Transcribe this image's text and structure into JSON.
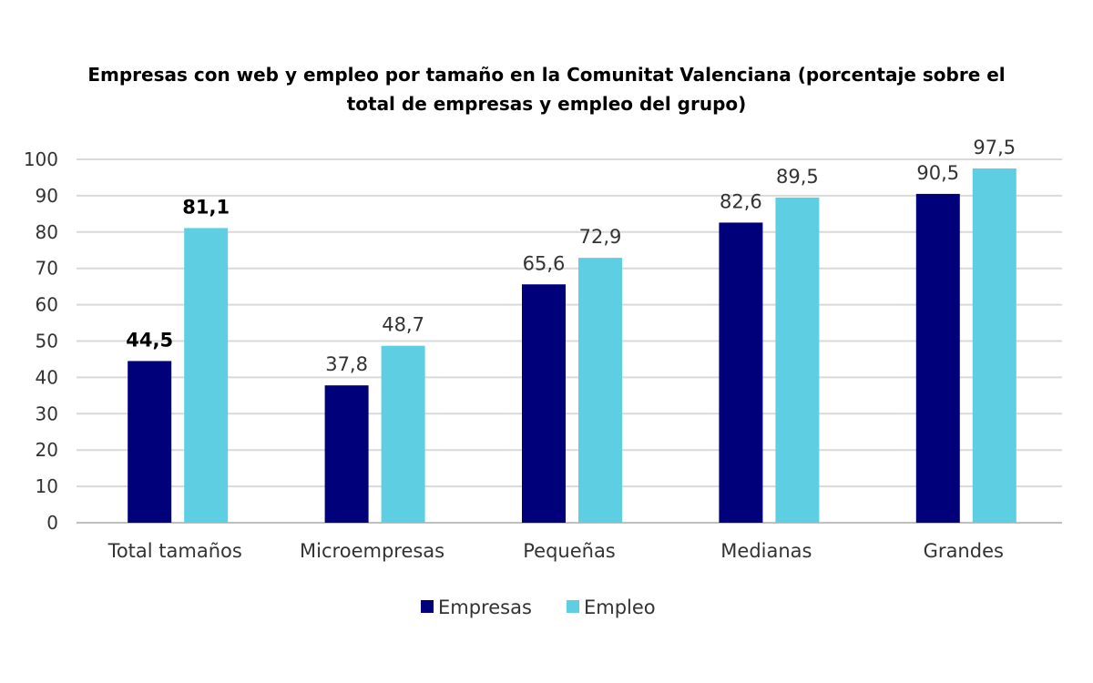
{
  "chart_data": {
    "type": "bar",
    "title": "Empresas con web y empleo por tamaño en la Comunitat Valenciana (porcentaje sobre el total de empresas y empleo del grupo)",
    "categories": [
      "Total tamaños",
      "Microempresas",
      "Pequeñas",
      "Medianas",
      "Grandes"
    ],
    "series": [
      {
        "name": "Empresas",
        "color": "#00007a",
        "values": [
          44.5,
          37.8,
          65.6,
          82.6,
          90.5
        ],
        "labels": [
          "44,5",
          "37,8",
          "65,6",
          "82,6",
          "90,5"
        ]
      },
      {
        "name": "Empleo",
        "color": "#5ecfe3",
        "values": [
          81.1,
          48.7,
          72.9,
          89.5,
          97.5
        ],
        "labels": [
          "81,1",
          "48,7",
          "72,9",
          "89,5",
          "97,5"
        ]
      }
    ],
    "bold_category_index": 0,
    "yticks": [
      "0",
      "10",
      "20",
      "30",
      "40",
      "50",
      "60",
      "70",
      "80",
      "90",
      "100"
    ],
    "ylim": [
      0,
      100
    ],
    "xlabel": "",
    "ylabel": "",
    "grid": true,
    "legend_position": "bottom-center"
  }
}
